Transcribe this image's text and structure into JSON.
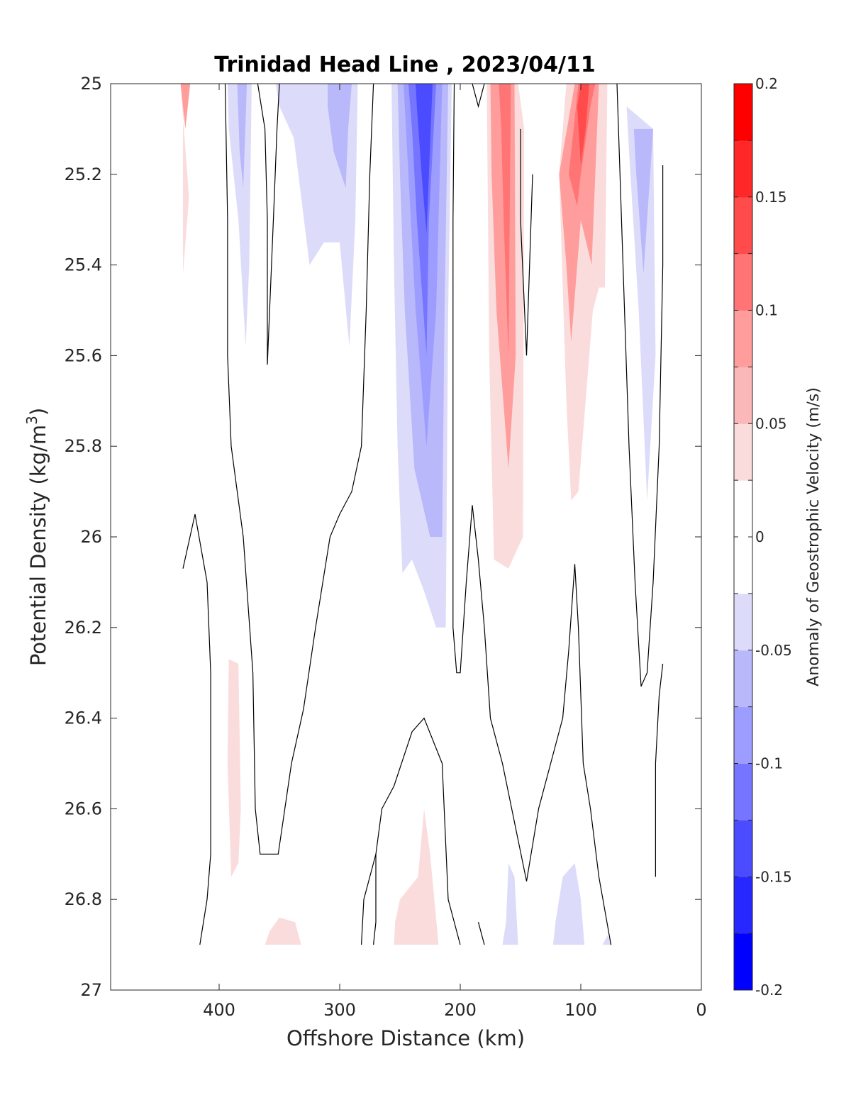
{
  "chart_data": {
    "type": "contour",
    "title": "Trinidad Head Line , 2023/04/11",
    "xlabel": "Offshore Distance (km)",
    "ylabel_main": "Potential Density (kg/m",
    "ylabel_sup": "3",
    "ylabel_close": ")",
    "colorbar_label": "Anomaly of Geostrophic Velocity (m/s)",
    "xlim": [
      490,
      0
    ],
    "x_reversed": true,
    "ylim": [
      25,
      27
    ],
    "y_reversed": true,
    "x_ticks": [
      "400",
      "300",
      "200",
      "100",
      "0"
    ],
    "x_tick_values": [
      400,
      300,
      200,
      100,
      0
    ],
    "y_ticks": [
      "25",
      "25.2",
      "25.4",
      "25.6",
      "25.8",
      "26",
      "26.2",
      "26.4",
      "26.6",
      "26.8",
      "27"
    ],
    "y_tick_values": [
      25,
      25.2,
      25.4,
      25.6,
      25.8,
      26,
      26.2,
      26.4,
      26.6,
      26.8,
      27
    ],
    "colorbar_range": [
      -0.2,
      0.2
    ],
    "colorbar_ticks": [
      "-0.2",
      "-0.15",
      "-0.1",
      "-0.05",
      "0",
      "0.05",
      "0.1",
      "0.15",
      "0.2"
    ],
    "colorbar_tick_values": [
      -0.2,
      -0.15,
      -0.1,
      -0.05,
      0,
      0.05,
      0.1,
      0.15,
      0.2
    ],
    "colorbar_levels_low_to_high": [
      "#0000ff",
      "#2727ff",
      "#4b4bff",
      "#7575ff",
      "#9d9dff",
      "#b8b8fa",
      "#dcdcfa",
      "#ffffff",
      "#ffffff",
      "#fadcdc",
      "#fab8b8",
      "#ff9d9d",
      "#ff7575",
      "#ff4b4b",
      "#ff2727",
      "#ff0000"
    ],
    "filled_regions": [
      {
        "sign": "positive",
        "color": "#fadcdc",
        "points": [
          [
            432,
            25
          ],
          [
            428,
            25
          ],
          [
            430,
            25.1
          ],
          [
            430,
            25.42
          ],
          [
            425,
            25.25
          ]
        ]
      },
      {
        "sign": "positive",
        "color": "#ff9d9d",
        "points": [
          [
            432,
            25
          ],
          [
            424,
            25
          ],
          [
            428,
            25.1
          ]
        ]
      },
      {
        "sign": "negative",
        "color": "#dcdcfa",
        "points": [
          [
            393,
            25
          ],
          [
            373,
            25
          ],
          [
            375,
            25.4
          ],
          [
            378,
            25.58
          ],
          [
            384,
            25.3
          ],
          [
            392,
            25.1
          ]
        ]
      },
      {
        "sign": "negative",
        "color": "#b8b8fa",
        "points": [
          [
            385,
            25
          ],
          [
            377,
            25
          ],
          [
            380,
            25.23
          ],
          [
            383,
            25.15
          ]
        ]
      },
      {
        "sign": "negative",
        "color": "#dcdcfa",
        "points": [
          [
            353,
            25
          ],
          [
            285,
            25
          ],
          [
            287,
            25.3
          ],
          [
            292,
            25.58
          ],
          [
            300,
            25.35
          ],
          [
            313,
            25.35
          ],
          [
            325,
            25.4
          ],
          [
            338,
            25.12
          ],
          [
            350,
            25.05
          ]
        ]
      },
      {
        "sign": "negative",
        "color": "#b8b8fa",
        "points": [
          [
            310,
            25
          ],
          [
            290,
            25
          ],
          [
            293,
            25.1
          ],
          [
            295,
            25.23
          ],
          [
            305,
            25.15
          ],
          [
            310,
            25.05
          ]
        ]
      },
      {
        "sign": "negative",
        "color": "#dcdcfa",
        "points": [
          [
            257,
            25
          ],
          [
            207,
            25
          ],
          [
            210,
            25.5
          ],
          [
            212,
            26.2
          ],
          [
            220,
            26.2
          ],
          [
            230,
            26.12
          ],
          [
            240,
            26.05
          ],
          [
            248,
            26.08
          ],
          [
            252,
            25.8
          ],
          [
            255,
            25.4
          ]
        ]
      },
      {
        "sign": "negative",
        "color": "#b8b8fa",
        "points": [
          [
            252,
            25
          ],
          [
            210,
            25
          ],
          [
            213,
            25.5
          ],
          [
            215,
            26
          ],
          [
            225,
            26
          ],
          [
            238,
            25.85
          ],
          [
            246,
            25.5
          ],
          [
            250,
            25.2
          ]
        ]
      },
      {
        "sign": "negative",
        "color": "#9d9dff",
        "points": [
          [
            247,
            25
          ],
          [
            215,
            25
          ],
          [
            220,
            25.5
          ],
          [
            228,
            25.8
          ],
          [
            237,
            25.5
          ],
          [
            243,
            25.2
          ]
        ]
      },
      {
        "sign": "negative",
        "color": "#7575ff",
        "points": [
          [
            243,
            25
          ],
          [
            220,
            25
          ],
          [
            226,
            25.3
          ],
          [
            228,
            25.6
          ],
          [
            236,
            25.3
          ],
          [
            240,
            25.1
          ]
        ]
      },
      {
        "sign": "negative",
        "color": "#4b4bff",
        "points": [
          [
            237,
            25
          ],
          [
            223,
            25
          ],
          [
            226,
            25.2
          ],
          [
            228,
            25.33
          ],
          [
            232,
            25.2
          ],
          [
            236,
            25.05
          ]
        ]
      },
      {
        "sign": "positive",
        "color": "#fadcdc",
        "points": [
          [
            178,
            25
          ],
          [
            152,
            25
          ],
          [
            147,
            25.1
          ],
          [
            148,
            26
          ],
          [
            160,
            26.07
          ],
          [
            172,
            26.05
          ],
          [
            176,
            25.6
          ]
        ]
      },
      {
        "sign": "positive",
        "color": "#ff9d9d",
        "points": [
          [
            175,
            25
          ],
          [
            155,
            25
          ],
          [
            154,
            25.6
          ],
          [
            160,
            25.85
          ],
          [
            170,
            25.5
          ],
          [
            174,
            25.2
          ]
        ]
      },
      {
        "sign": "positive",
        "color": "#ff7575",
        "points": [
          [
            168,
            25
          ],
          [
            158,
            25
          ],
          [
            160,
            25.6
          ],
          [
            164,
            25.3
          ],
          [
            166,
            25.1
          ]
        ]
      },
      {
        "sign": "positive",
        "color": "#fadcdc",
        "points": [
          [
            112,
            25
          ],
          [
            78,
            25
          ],
          [
            80,
            25.45
          ],
          [
            85,
            25.45
          ],
          [
            90,
            25.5
          ],
          [
            102,
            25.9
          ],
          [
            108,
            25.92
          ],
          [
            112,
            25.7
          ],
          [
            118,
            25.2
          ],
          [
            115,
            25.1
          ]
        ]
      },
      {
        "sign": "positive",
        "color": "#ff9d9d",
        "points": [
          [
            105,
            25
          ],
          [
            85,
            25
          ],
          [
            91,
            25.4
          ],
          [
            100,
            25.3
          ],
          [
            108,
            25.57
          ],
          [
            112,
            25.4
          ],
          [
            118,
            25.2
          ]
        ]
      },
      {
        "sign": "positive",
        "color": "#ff7575",
        "points": [
          [
            102,
            25
          ],
          [
            88,
            25
          ],
          [
            92,
            25.05
          ],
          [
            100,
            25.2
          ],
          [
            103,
            25.27
          ],
          [
            110,
            25.2
          ]
        ]
      },
      {
        "sign": "positive",
        "color": "#ff4b4b",
        "points": [
          [
            100,
            25
          ],
          [
            93,
            25
          ],
          [
            96,
            25.1
          ],
          [
            100,
            25.18
          ],
          [
            103,
            25.05
          ]
        ]
      },
      {
        "sign": "negative",
        "color": "#dcdcfa",
        "points": [
          [
            62,
            25.05
          ],
          [
            40,
            25.1
          ],
          [
            38,
            25.6
          ],
          [
            45,
            25.92
          ],
          [
            52,
            25.5
          ],
          [
            60,
            25.15
          ]
        ]
      },
      {
        "sign": "negative",
        "color": "#b8b8fa",
        "points": [
          [
            56,
            25.1
          ],
          [
            40,
            25.1
          ],
          [
            48,
            25.42
          ],
          [
            54,
            25.2
          ]
        ]
      },
      {
        "sign": "positive",
        "color": "#fadcdc",
        "points": [
          [
            392,
            26.27
          ],
          [
            384,
            26.28
          ],
          [
            382,
            26.6
          ],
          [
            384,
            26.72
          ],
          [
            390,
            26.75
          ],
          [
            393,
            26.5
          ]
        ]
      },
      {
        "sign": "positive",
        "color": "#fadcdc",
        "points": [
          [
            362,
            26.9
          ],
          [
            332,
            26.9
          ],
          [
            337,
            26.85
          ],
          [
            350,
            26.84
          ],
          [
            358,
            26.87
          ]
        ]
      },
      {
        "sign": "positive",
        "color": "#fadcdc",
        "points": [
          [
            255,
            26.9
          ],
          [
            218,
            26.9
          ],
          [
            225,
            26.7
          ],
          [
            230,
            26.6
          ],
          [
            235,
            26.75
          ],
          [
            250,
            26.8
          ],
          [
            254,
            26.85
          ]
        ]
      },
      {
        "sign": "negative",
        "color": "#dcdcfa",
        "points": [
          [
            165,
            26.9
          ],
          [
            152,
            26.9
          ],
          [
            155,
            26.75
          ],
          [
            160,
            26.72
          ],
          [
            162,
            26.85
          ]
        ]
      },
      {
        "sign": "negative",
        "color": "#dcdcfa",
        "points": [
          [
            123,
            26.9
          ],
          [
            97,
            26.9
          ],
          [
            100,
            26.8
          ],
          [
            105,
            26.72
          ],
          [
            115,
            26.75
          ],
          [
            121,
            26.85
          ]
        ]
      },
      {
        "sign": "negative",
        "color": "#dcdcfa",
        "points": [
          [
            82,
            26.9
          ],
          [
            74,
            26.9
          ],
          [
            78,
            26.88
          ]
        ]
      }
    ],
    "zero_contours": [
      [
        [
          395,
          25
        ],
        [
          393,
          25.3
        ],
        [
          393,
          25.6
        ],
        [
          390,
          25.8
        ],
        [
          380,
          26
        ],
        [
          372,
          26.3
        ],
        [
          370,
          26.6
        ],
        [
          366,
          26.7
        ],
        [
          351,
          26.7
        ],
        [
          340,
          26.5
        ],
        [
          330,
          26.38
        ],
        [
          320,
          26.2
        ],
        [
          308,
          26
        ],
        [
          300,
          25.95
        ],
        [
          290,
          25.9
        ],
        [
          282,
          25.8
        ],
        [
          278,
          25.5
        ],
        [
          275,
          25.2
        ],
        [
          272,
          25
        ]
      ],
      [
        [
          368,
          25
        ],
        [
          362,
          25.1
        ],
        [
          360,
          25.3
        ],
        [
          360,
          25.62
        ],
        [
          355,
          25.3
        ],
        [
          352,
          25.1
        ],
        [
          350,
          25
        ]
      ],
      [
        [
          430,
          26.07
        ],
        [
          420,
          25.95
        ],
        [
          410,
          26.1
        ],
        [
          407,
          26.3
        ],
        [
          407,
          26.7
        ],
        [
          410,
          26.8
        ],
        [
          416,
          26.9
        ]
      ],
      [
        [
          205,
          25
        ],
        [
          206,
          25.3
        ],
        [
          206,
          26.2
        ],
        [
          203,
          26.3
        ],
        [
          200,
          26.3
        ],
        [
          195,
          26.1
        ],
        [
          190,
          25.93
        ],
        [
          185,
          26.05
        ],
        [
          180,
          26.2
        ],
        [
          175,
          26.4
        ],
        [
          165,
          26.5
        ],
        [
          145,
          26.76
        ],
        [
          135,
          26.6
        ],
        [
          125,
          26.5
        ],
        [
          115,
          26.4
        ],
        [
          110,
          26.25
        ],
        [
          105,
          26.06
        ],
        [
          102,
          26.2
        ],
        [
          98,
          26.5
        ],
        [
          92,
          26.6
        ],
        [
          85,
          26.75
        ],
        [
          75,
          26.9
        ]
      ],
      [
        [
          190,
          25
        ],
        [
          185,
          25.05
        ],
        [
          180,
          25
        ]
      ],
      [
        [
          150,
          25.1
        ],
        [
          150,
          25.3
        ],
        [
          145,
          25.6
        ],
        [
          140,
          25.2
        ]
      ],
      [
        [
          70,
          25
        ],
        [
          65,
          25.4
        ],
        [
          60,
          25.8
        ],
        [
          55,
          26.1
        ],
        [
          50,
          26.33
        ],
        [
          45,
          26.3
        ],
        [
          40,
          26.1
        ],
        [
          35,
          25.8
        ],
        [
          32,
          25.4
        ],
        [
          32,
          25.18
        ]
      ],
      [
        [
          32,
          26.28
        ],
        [
          35,
          26.35
        ],
        [
          38,
          26.5
        ],
        [
          38,
          26.75
        ]
      ],
      [
        [
          282,
          26.9
        ],
        [
          280,
          26.8
        ],
        [
          272,
          26.72
        ],
        [
          270,
          26.7
        ],
        [
          265,
          26.6
        ],
        [
          255,
          26.55
        ],
        [
          240,
          26.43
        ],
        [
          230,
          26.4
        ],
        [
          215,
          26.5
        ],
        [
          210,
          26.8
        ],
        [
          200,
          26.9
        ]
      ],
      [
        [
          272,
          26.9
        ],
        [
          270,
          26.85
        ],
        [
          270,
          26.7
        ]
      ],
      [
        [
          185,
          26.85
        ],
        [
          180,
          26.9
        ]
      ]
    ]
  }
}
